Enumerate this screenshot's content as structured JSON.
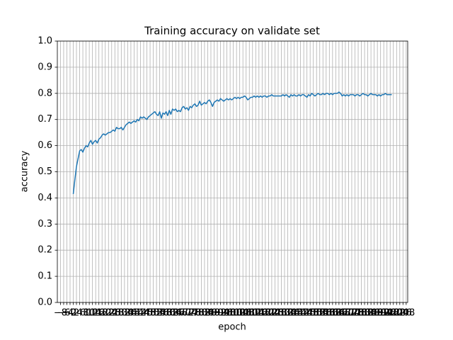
{
  "chart_data": {
    "type": "line",
    "title": "Training accuracy on validate set",
    "x_label": "epoch",
    "y_label": "accuracy",
    "x": [
      0,
      1,
      2,
      3,
      4,
      5,
      6,
      7,
      8,
      9,
      10,
      11,
      12,
      13,
      14,
      15,
      16,
      17,
      18,
      19,
      20,
      21,
      22,
      23,
      24,
      25,
      26,
      27,
      28,
      29,
      30,
      31,
      32,
      33,
      34,
      35,
      36,
      37,
      38,
      39,
      40,
      41,
      42,
      43,
      44,
      45,
      46,
      47,
      48,
      49,
      50,
      51,
      52,
      53,
      54,
      55,
      56,
      57,
      58,
      59,
      60,
      61,
      62,
      63,
      64,
      65,
      66,
      67,
      68,
      69,
      70,
      71,
      72,
      73,
      74,
      75,
      76,
      77,
      78,
      79,
      80,
      81,
      82,
      83,
      84,
      85,
      86,
      87,
      88,
      89,
      90,
      91,
      92,
      93,
      94,
      95,
      96,
      97,
      98,
      99,
      100,
      101,
      102,
      103,
      104,
      105,
      106,
      107,
      108,
      109,
      110,
      111,
      112,
      113,
      114,
      115,
      116,
      117,
      118,
      119,
      120,
      121,
      122,
      123,
      124,
      125,
      126,
      127,
      128,
      129,
      130,
      131,
      132,
      133,
      134,
      135,
      136,
      137,
      138,
      139,
      140,
      141,
      142,
      143,
      144,
      145,
      146,
      147,
      148,
      149,
      150,
      151,
      152,
      153,
      154,
      155,
      156,
      157,
      158,
      159,
      160,
      161,
      162,
      163,
      164,
      165,
      166,
      167,
      168,
      169,
      170,
      171,
      172,
      173,
      174,
      175,
      176,
      177,
      178,
      179,
      180,
      181,
      182,
      183,
      184,
      185,
      186,
      187,
      188,
      189,
      190,
      191,
      192,
      193,
      194,
      195,
      196,
      197,
      198,
      199
    ],
    "series": [
      {
        "color": "#1f77b4",
        "values": [
          0.415,
          0.47,
          0.52,
          0.55,
          0.58,
          0.585,
          0.575,
          0.59,
          0.6,
          0.595,
          0.61,
          0.62,
          0.605,
          0.615,
          0.62,
          0.61,
          0.625,
          0.63,
          0.64,
          0.645,
          0.64,
          0.645,
          0.65,
          0.65,
          0.655,
          0.66,
          0.655,
          0.67,
          0.665,
          0.665,
          0.67,
          0.66,
          0.67,
          0.68,
          0.685,
          0.69,
          0.685,
          0.69,
          0.695,
          0.69,
          0.7,
          0.695,
          0.71,
          0.705,
          0.71,
          0.705,
          0.7,
          0.71,
          0.715,
          0.72,
          0.725,
          0.73,
          0.72,
          0.715,
          0.73,
          0.705,
          0.725,
          0.72,
          0.73,
          0.715,
          0.735,
          0.72,
          0.74,
          0.735,
          0.74,
          0.73,
          0.735,
          0.73,
          0.745,
          0.75,
          0.74,
          0.745,
          0.735,
          0.75,
          0.745,
          0.755,
          0.76,
          0.75,
          0.755,
          0.77,
          0.755,
          0.76,
          0.765,
          0.76,
          0.77,
          0.775,
          0.765,
          0.75,
          0.765,
          0.77,
          0.775,
          0.77,
          0.78,
          0.775,
          0.77,
          0.775,
          0.78,
          0.775,
          0.78,
          0.775,
          0.78,
          0.785,
          0.78,
          0.785,
          0.78,
          0.785,
          0.785,
          0.79,
          0.785,
          0.775,
          0.78,
          0.785,
          0.785,
          0.79,
          0.785,
          0.79,
          0.785,
          0.79,
          0.785,
          0.79,
          0.79,
          0.785,
          0.79,
          0.79,
          0.795,
          0.79,
          0.79,
          0.79,
          0.79,
          0.79,
          0.79,
          0.795,
          0.79,
          0.795,
          0.79,
          0.785,
          0.795,
          0.79,
          0.795,
          0.79,
          0.79,
          0.795,
          0.79,
          0.795,
          0.795,
          0.79,
          0.785,
          0.795,
          0.79,
          0.8,
          0.795,
          0.79,
          0.795,
          0.8,
          0.795,
          0.795,
          0.8,
          0.795,
          0.8,
          0.8,
          0.795,
          0.8,
          0.795,
          0.8,
          0.8,
          0.8,
          0.805,
          0.8,
          0.79,
          0.795,
          0.79,
          0.795,
          0.79,
          0.795,
          0.795,
          0.795,
          0.79,
          0.795,
          0.795,
          0.79,
          0.795,
          0.8,
          0.795,
          0.795,
          0.79,
          0.795,
          0.8,
          0.795,
          0.795,
          0.795,
          0.79,
          0.795,
          0.79,
          0.795,
          0.795,
          0.8,
          0.795,
          0.795,
          0.795,
          0.795
        ]
      }
    ],
    "xlim": [
      -9.95,
      208.95
    ],
    "xticks": [
      {
        "value": -8,
        "label": "−8"
      },
      {
        "value": -6,
        "label": "−6"
      },
      {
        "value": -4,
        "label": "−4"
      },
      {
        "value": -2,
        "label": "−2"
      },
      0,
      2,
      4,
      6,
      8,
      10,
      12,
      14,
      16,
      18,
      20,
      22,
      24,
      26,
      28,
      30,
      32,
      34,
      36,
      38,
      40,
      42,
      44,
      46,
      48,
      50,
      52,
      54,
      56,
      58,
      60,
      62,
      64,
      66,
      68,
      70,
      72,
      74,
      76,
      78,
      80,
      82,
      84,
      86,
      88,
      90,
      92,
      94,
      96,
      98,
      100,
      102,
      104,
      106,
      108,
      110,
      112,
      114,
      116,
      118,
      120,
      122,
      124,
      126,
      128,
      130,
      132,
      134,
      136,
      138,
      140,
      142,
      144,
      146,
      148,
      150,
      152,
      154,
      156,
      158,
      160,
      162,
      164,
      166,
      168,
      170,
      172,
      174,
      176,
      178,
      180,
      182,
      184,
      186,
      188,
      190,
      192,
      194,
      196,
      198,
      200,
      202,
      204,
      206,
      208
    ],
    "ylim": [
      0,
      1
    ],
    "yticks": [
      {
        "value": 0,
        "label": "0.0"
      },
      0.1,
      0.2,
      0.3,
      0.4,
      0.5,
      0.6,
      0.7,
      0.8,
      0.9,
      {
        "value": 1,
        "label": "1.0"
      }
    ],
    "grid": true
  }
}
